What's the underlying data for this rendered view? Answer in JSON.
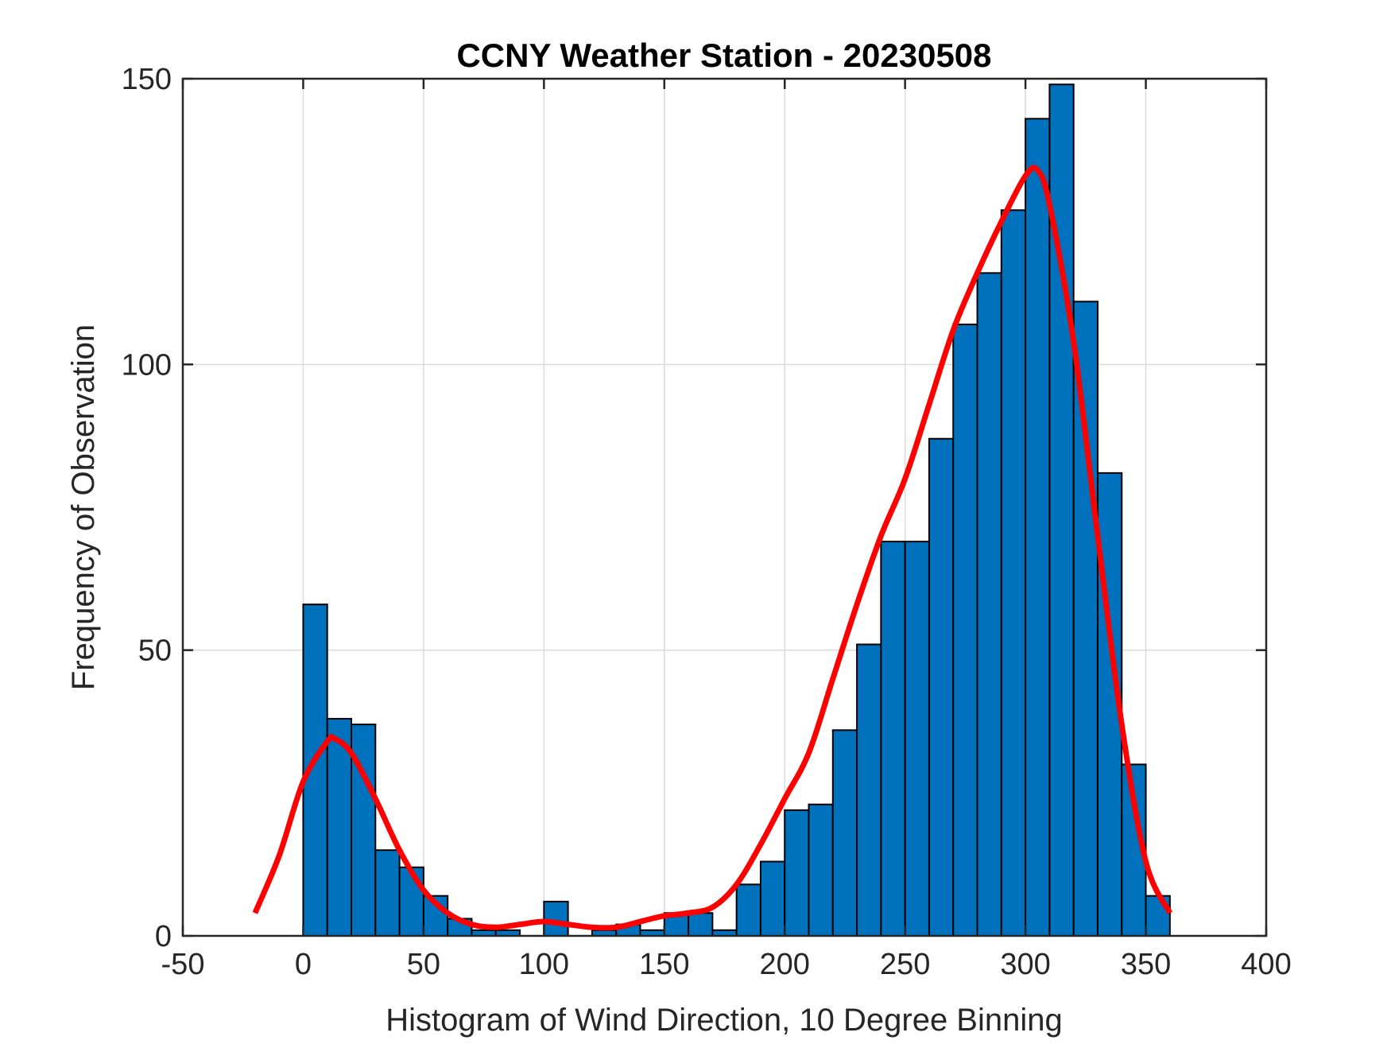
{
  "chart_data": {
    "type": "bar",
    "title": "CCNY Weather Station - 20230508",
    "xlabel": "Histogram of Wind Direction, 10 Degree Binning",
    "ylabel": "Frequency of Observation",
    "xlim": [
      -50,
      400
    ],
    "ylim": [
      0,
      150
    ],
    "xticks": [
      -50,
      0,
      50,
      100,
      150,
      200,
      250,
      300,
      350,
      400
    ],
    "yticks": [
      0,
      50,
      100,
      150
    ],
    "xtick_labels": [
      "-50",
      "0",
      "50",
      "100",
      "150",
      "200",
      "250",
      "300",
      "350",
      "400"
    ],
    "ytick_labels": [
      "0",
      "50",
      "100",
      "150"
    ],
    "grid": true,
    "bin_width": 10,
    "bins": [
      {
        "x0": 0,
        "x1": 10,
        "value": 58
      },
      {
        "x0": 10,
        "x1": 20,
        "value": 38
      },
      {
        "x0": 20,
        "x1": 30,
        "value": 37
      },
      {
        "x0": 30,
        "x1": 40,
        "value": 15
      },
      {
        "x0": 40,
        "x1": 50,
        "value": 12
      },
      {
        "x0": 50,
        "x1": 60,
        "value": 7
      },
      {
        "x0": 60,
        "x1": 70,
        "value": 3
      },
      {
        "x0": 70,
        "x1": 80,
        "value": 1
      },
      {
        "x0": 80,
        "x1": 90,
        "value": 1
      },
      {
        "x0": 90,
        "x1": 100,
        "value": 0
      },
      {
        "x0": 100,
        "x1": 110,
        "value": 6
      },
      {
        "x0": 110,
        "x1": 120,
        "value": 0
      },
      {
        "x0": 120,
        "x1": 130,
        "value": 1
      },
      {
        "x0": 130,
        "x1": 140,
        "value": 2
      },
      {
        "x0": 140,
        "x1": 150,
        "value": 1
      },
      {
        "x0": 150,
        "x1": 160,
        "value": 4
      },
      {
        "x0": 160,
        "x1": 170,
        "value": 4
      },
      {
        "x0": 170,
        "x1": 180,
        "value": 1
      },
      {
        "x0": 180,
        "x1": 190,
        "value": 9
      },
      {
        "x0": 190,
        "x1": 200,
        "value": 13
      },
      {
        "x0": 200,
        "x1": 210,
        "value": 22
      },
      {
        "x0": 210,
        "x1": 220,
        "value": 23
      },
      {
        "x0": 220,
        "x1": 230,
        "value": 36
      },
      {
        "x0": 230,
        "x1": 240,
        "value": 51
      },
      {
        "x0": 240,
        "x1": 250,
        "value": 69
      },
      {
        "x0": 250,
        "x1": 260,
        "value": 69
      },
      {
        "x0": 260,
        "x1": 270,
        "value": 87
      },
      {
        "x0": 270,
        "x1": 280,
        "value": 107
      },
      {
        "x0": 280,
        "x1": 290,
        "value": 116
      },
      {
        "x0": 290,
        "x1": 300,
        "value": 127
      },
      {
        "x0": 300,
        "x1": 310,
        "value": 143
      },
      {
        "x0": 310,
        "x1": 320,
        "value": 149
      },
      {
        "x0": 320,
        "x1": 330,
        "value": 111
      },
      {
        "x0": 330,
        "x1": 340,
        "value": 81
      },
      {
        "x0": 340,
        "x1": 350,
        "value": 30
      },
      {
        "x0": 350,
        "x1": 360,
        "value": 7
      }
    ],
    "series": [
      {
        "type": "line",
        "x": [
          -20,
          -10,
          0,
          10,
          13,
          20,
          30,
          40,
          50,
          60,
          70,
          80,
          90,
          100,
          110,
          120,
          130,
          140,
          150,
          160,
          170,
          180,
          190,
          200,
          210,
          220,
          230,
          240,
          250,
          260,
          270,
          280,
          290,
          300,
          305,
          310,
          320,
          330,
          340,
          350,
          360
        ],
        "values": [
          4,
          14,
          27,
          34,
          34.5,
          32,
          24,
          15,
          8,
          4,
          2,
          1.5,
          2,
          2.5,
          2,
          1.5,
          1.5,
          2.5,
          3.5,
          4,
          5,
          9,
          16,
          24,
          32,
          45,
          58,
          70,
          80,
          93,
          106,
          116,
          125,
          133,
          134,
          128,
          104,
          70,
          37,
          13,
          4
        ]
      }
    ],
    "colors": {
      "bar_fill": "#0072BD",
      "bar_edge": "#000000",
      "fit_line": "#FF0000",
      "grid": "#DBDBDB",
      "axis": "#262626"
    }
  }
}
